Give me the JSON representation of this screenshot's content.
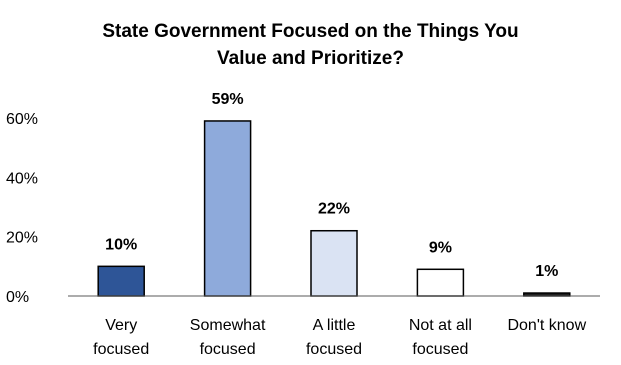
{
  "chart_data": {
    "type": "bar",
    "title_lines": [
      "State Government Focused on the Things You",
      "Value and Prioritize?"
    ],
    "categories": [
      [
        "Very",
        "focused"
      ],
      [
        "Somewhat",
        "focused"
      ],
      [
        "A little",
        "focused"
      ],
      [
        "Not at all",
        "focused"
      ],
      [
        "Don't know"
      ]
    ],
    "values": [
      10,
      59,
      22,
      9,
      1
    ],
    "value_labels": [
      "10%",
      "59%",
      "22%",
      "9%",
      "1%"
    ],
    "bar_colors": [
      "#2e5597",
      "#8eaadb",
      "#dae3f3",
      "#ffffff",
      "#1f1f1f"
    ],
    "bar_outline": "#000000",
    "ylim": [
      0,
      60
    ],
    "yticks": [
      0,
      20,
      40,
      60
    ],
    "ytick_labels": [
      "0%",
      "20%",
      "40%",
      "60%"
    ],
    "grid": false,
    "legend": "none"
  }
}
